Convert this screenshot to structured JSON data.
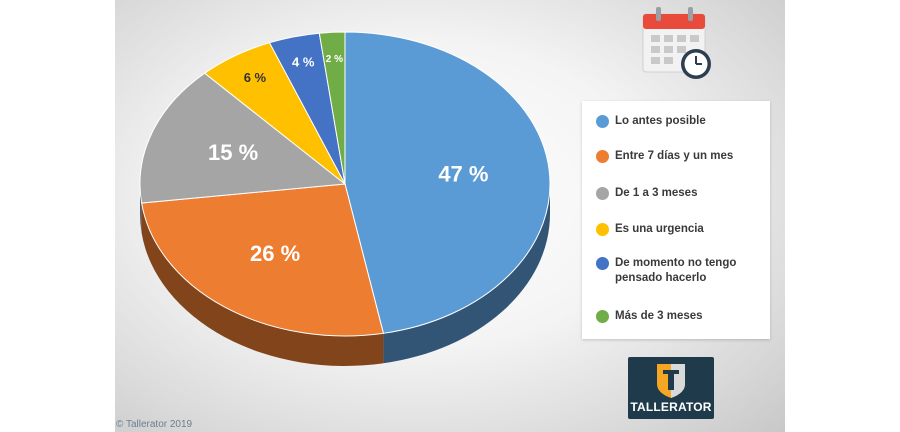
{
  "chart_data": {
    "type": "pie",
    "title": "",
    "slices": [
      {
        "label": "Lo antes posible",
        "value": 47,
        "display": "47 %",
        "color": "#5b9bd5"
      },
      {
        "label": "Entre 7 días y un mes",
        "value": 26,
        "display": "26 %",
        "color": "#ed7d31"
      },
      {
        "label": "De 1 a 3 meses",
        "value": 15,
        "display": "15 %",
        "color": "#a5a5a5"
      },
      {
        "label": "Es una urgencia",
        "value": 6,
        "display": "6 %",
        "color": "#ffc000"
      },
      {
        "label": "De momento no tengo pensado hacerlo",
        "value": 4,
        "display": "4 %",
        "color": "#4472c4"
      },
      {
        "label": "Más de 3 meses",
        "value": 2,
        "display": "2 %",
        "color": "#70ad47"
      }
    ],
    "legend_placement": "right"
  },
  "legend": {
    "items": [
      {
        "label": "Lo antes posible"
      },
      {
        "label": "Entre 7 días y un mes"
      },
      {
        "label": "De 1 a 3 meses"
      },
      {
        "label": "Es una urgencia"
      },
      {
        "label": "De momento no tengo pensado hacerlo"
      },
      {
        "label": "Más de 3 meses"
      }
    ]
  },
  "icons": {
    "calendar": "calendar-clock-icon",
    "logo": "tallerator-logo"
  },
  "branding": {
    "logo_text": "TALLERATOR",
    "copyright": "© Tallerator 2019"
  },
  "colors": {
    "panel_background": "#e6e6e6",
    "logo_background": "#1f3a4a",
    "calendar_red": "#e84a3c"
  }
}
